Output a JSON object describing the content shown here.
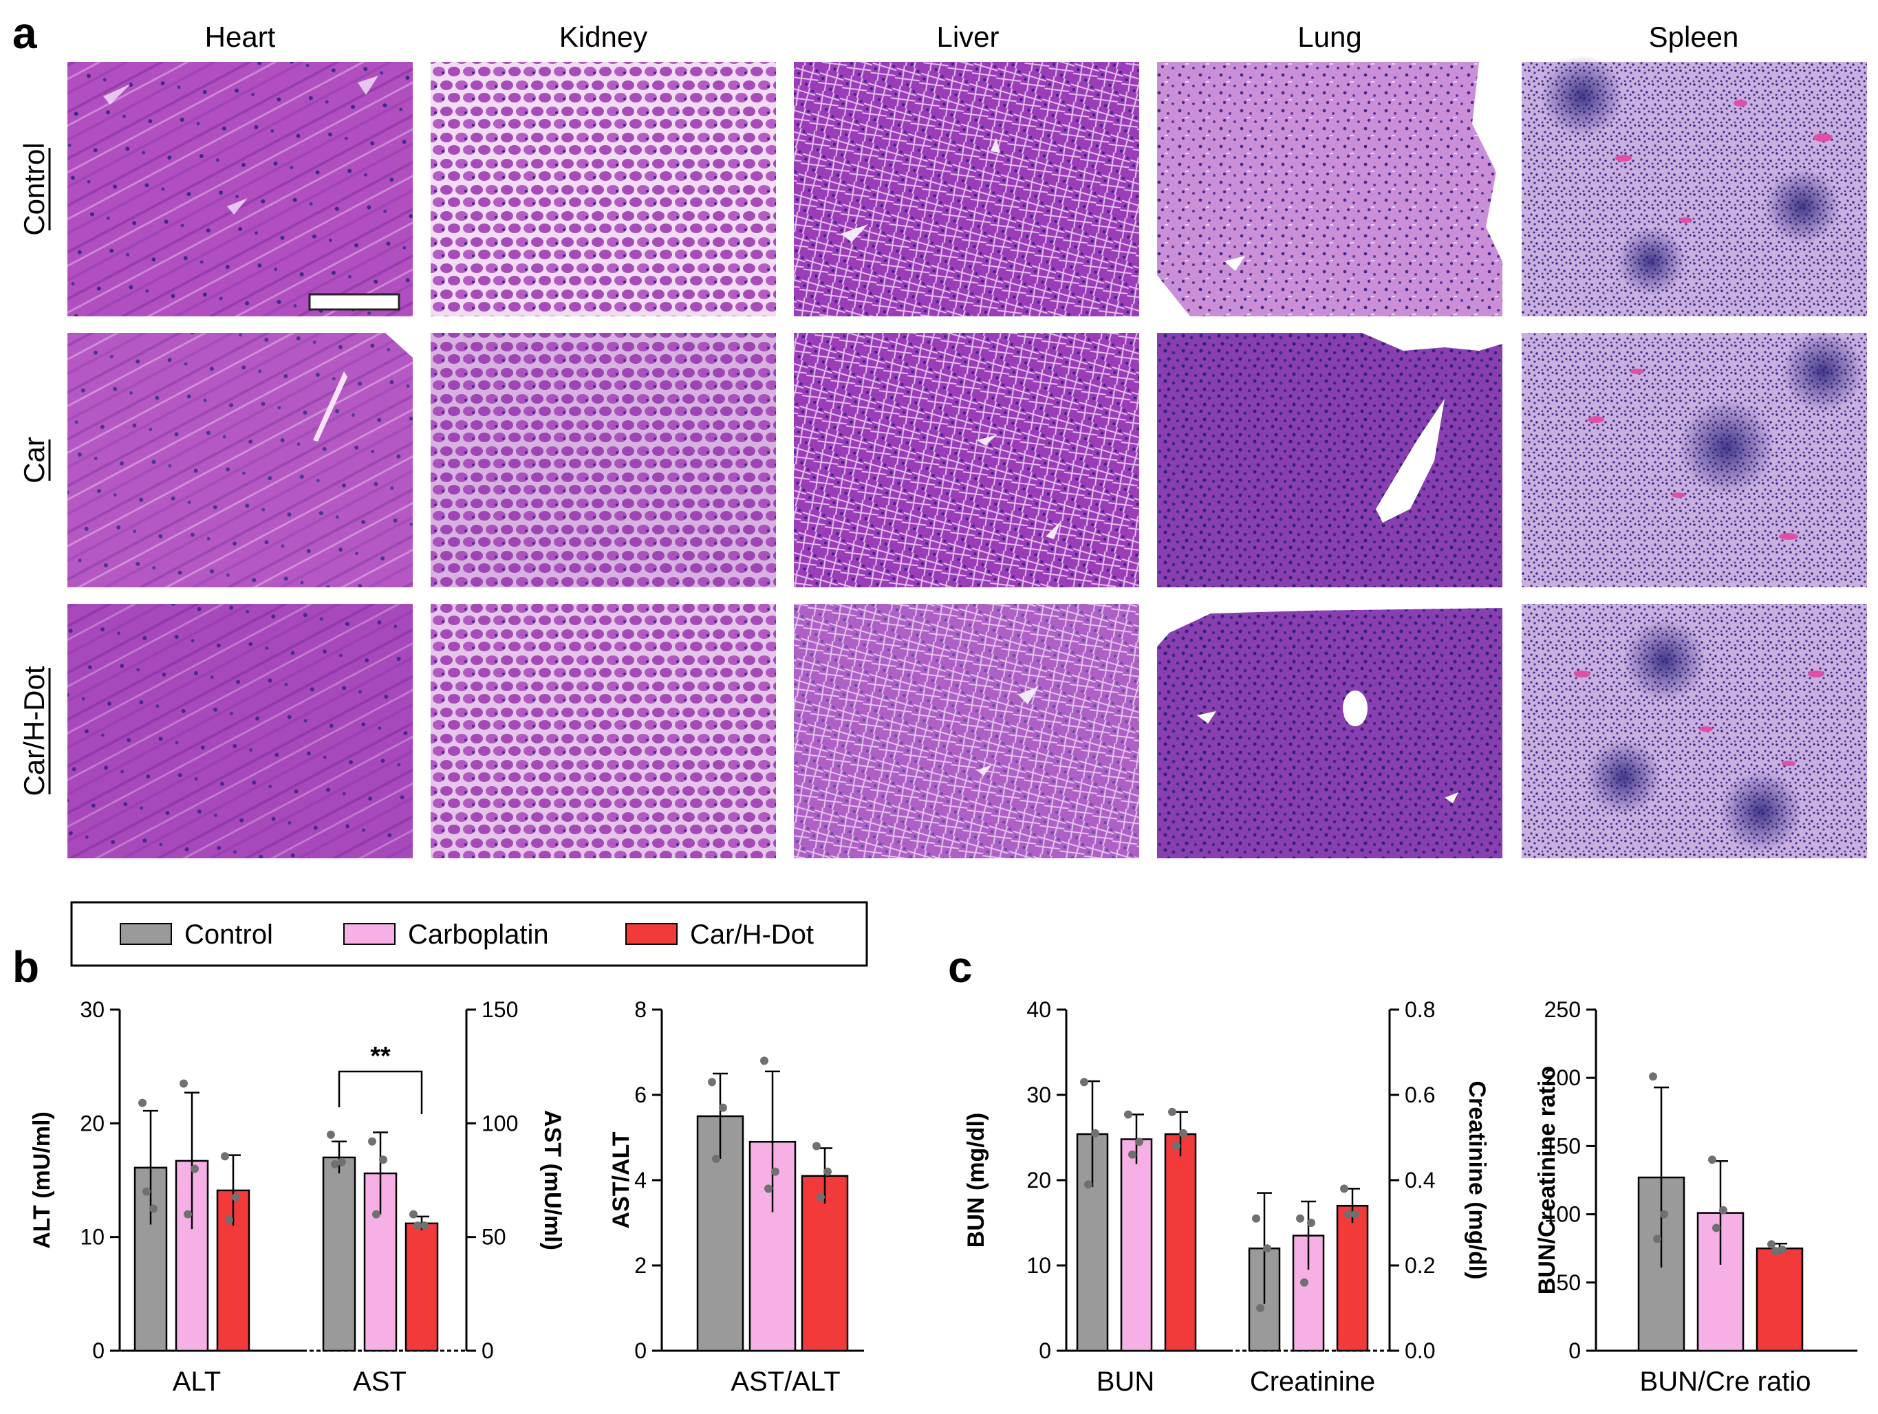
{
  "panel_labels": [
    "a",
    "b",
    "c"
  ],
  "histology": {
    "columns": [
      "Heart",
      "Kidney",
      "Liver",
      "Lung",
      "Spleen"
    ],
    "rows": [
      "Control",
      "Car",
      "Car/H-Dot"
    ]
  },
  "legend": {
    "items": [
      {
        "label": "Control",
        "color": "#9a9a9a"
      },
      {
        "label": "Carboplatin",
        "color": "#f7b0e6"
      },
      {
        "label": "Car/H-Dot",
        "color": "#f23a3a"
      }
    ]
  },
  "colors": {
    "control": "#9a9a9a",
    "carboplatin": "#f7b0e6",
    "carhdot": "#f23a3a",
    "point": "#707070"
  },
  "chart_data": [
    {
      "type": "bar",
      "categories": [
        "ALT",
        "AST"
      ],
      "ylabel": "ALT (mU/ml)",
      "ylim": [
        0,
        30
      ],
      "yticks": [
        0,
        10,
        20,
        30
      ],
      "y2label": "AST (mU/ml)",
      "y2lim": [
        0,
        150
      ],
      "y2ticks": [
        0,
        50,
        100,
        150
      ],
      "significance": "**",
      "groups": [
        {
          "category": "ALT",
          "axis": "left",
          "bars": [
            {
              "value": 16.1,
              "err": 5.0,
              "points": [
                21.8,
                12.5,
                14.0
              ]
            },
            {
              "value": 16.7,
              "err": 6.0,
              "points": [
                23.5,
                16.0,
                12.0
              ]
            },
            {
              "value": 14.1,
              "err": 3.1,
              "points": [
                17.1,
                13.5,
                11.5
              ]
            }
          ]
        },
        {
          "category": "AST",
          "axis": "right",
          "bars": [
            {
              "value": 85,
              "err": 7,
              "points": [
                95,
                83,
                82
              ]
            },
            {
              "value": 78,
              "err": 18,
              "points": [
                92,
                84,
                60
              ]
            },
            {
              "value": 56,
              "err": 3,
              "points": [
                60,
                55,
                55
              ]
            }
          ]
        }
      ]
    },
    {
      "type": "bar",
      "categories": [
        "AST/ALT"
      ],
      "ylabel": "AST/ALT",
      "ylim": [
        0,
        8
      ],
      "yticks": [
        0,
        2,
        4,
        6,
        8
      ],
      "groups": [
        {
          "category": "AST/ALT",
          "axis": "left",
          "bars": [
            {
              "value": 5.5,
              "err": 1.0,
              "points": [
                6.3,
                5.7,
                4.5
              ]
            },
            {
              "value": 4.9,
              "err": 1.65,
              "points": [
                6.8,
                4.2,
                3.8
              ]
            },
            {
              "value": 4.1,
              "err": 0.65,
              "points": [
                4.8,
                4.2,
                3.6
              ]
            }
          ]
        }
      ]
    },
    {
      "type": "bar",
      "categories": [
        "BUN",
        "Creatinine"
      ],
      "ylabel": "BUN (mg/dl)",
      "ylim": [
        0,
        40
      ],
      "yticks": [
        0,
        10,
        20,
        30,
        40
      ],
      "y2label": "Creatinine (mg/dl)",
      "y2lim": [
        0,
        0.8
      ],
      "y2ticks": [
        "0.0",
        "0.2",
        "0.4",
        "0.6",
        "0.8"
      ],
      "groups": [
        {
          "category": "BUN",
          "axis": "left",
          "bars": [
            {
              "value": 25.4,
              "err": 6.2,
              "points": [
                31.5,
                25.5,
                19.5
              ]
            },
            {
              "value": 24.8,
              "err": 2.9,
              "points": [
                27.7,
                24.5,
                23.0
              ]
            },
            {
              "value": 25.4,
              "err": 2.6,
              "points": [
                28.0,
                25.5,
                24.0
              ]
            }
          ]
        },
        {
          "category": "Creatinine",
          "axis": "right",
          "bars": [
            {
              "value": 0.24,
              "err": 0.13,
              "points": [
                0.31,
                0.24,
                0.1
              ]
            },
            {
              "value": 0.27,
              "err": 0.08,
              "points": [
                0.31,
                0.3,
                0.16
              ]
            },
            {
              "value": 0.34,
              "err": 0.04,
              "points": [
                0.38,
                0.32,
                0.32
              ]
            }
          ]
        }
      ]
    },
    {
      "type": "bar",
      "categories": [
        "BUN/Cre ratio"
      ],
      "ylabel": "BUN/Creatinine ratio",
      "ylim": [
        0,
        250
      ],
      "yticks": [
        0,
        50,
        100,
        150,
        200,
        250
      ],
      "groups": [
        {
          "category": "BUN/Cre ratio",
          "axis": "left",
          "bars": [
            {
              "value": 127,
              "err": 66,
              "points": [
                201,
                100,
                82
              ]
            },
            {
              "value": 101,
              "err": 38,
              "points": [
                140,
                103,
                90
              ]
            },
            {
              "value": 75,
              "err": 3.5,
              "points": [
                78,
                74,
                73
              ]
            }
          ]
        }
      ]
    }
  ]
}
